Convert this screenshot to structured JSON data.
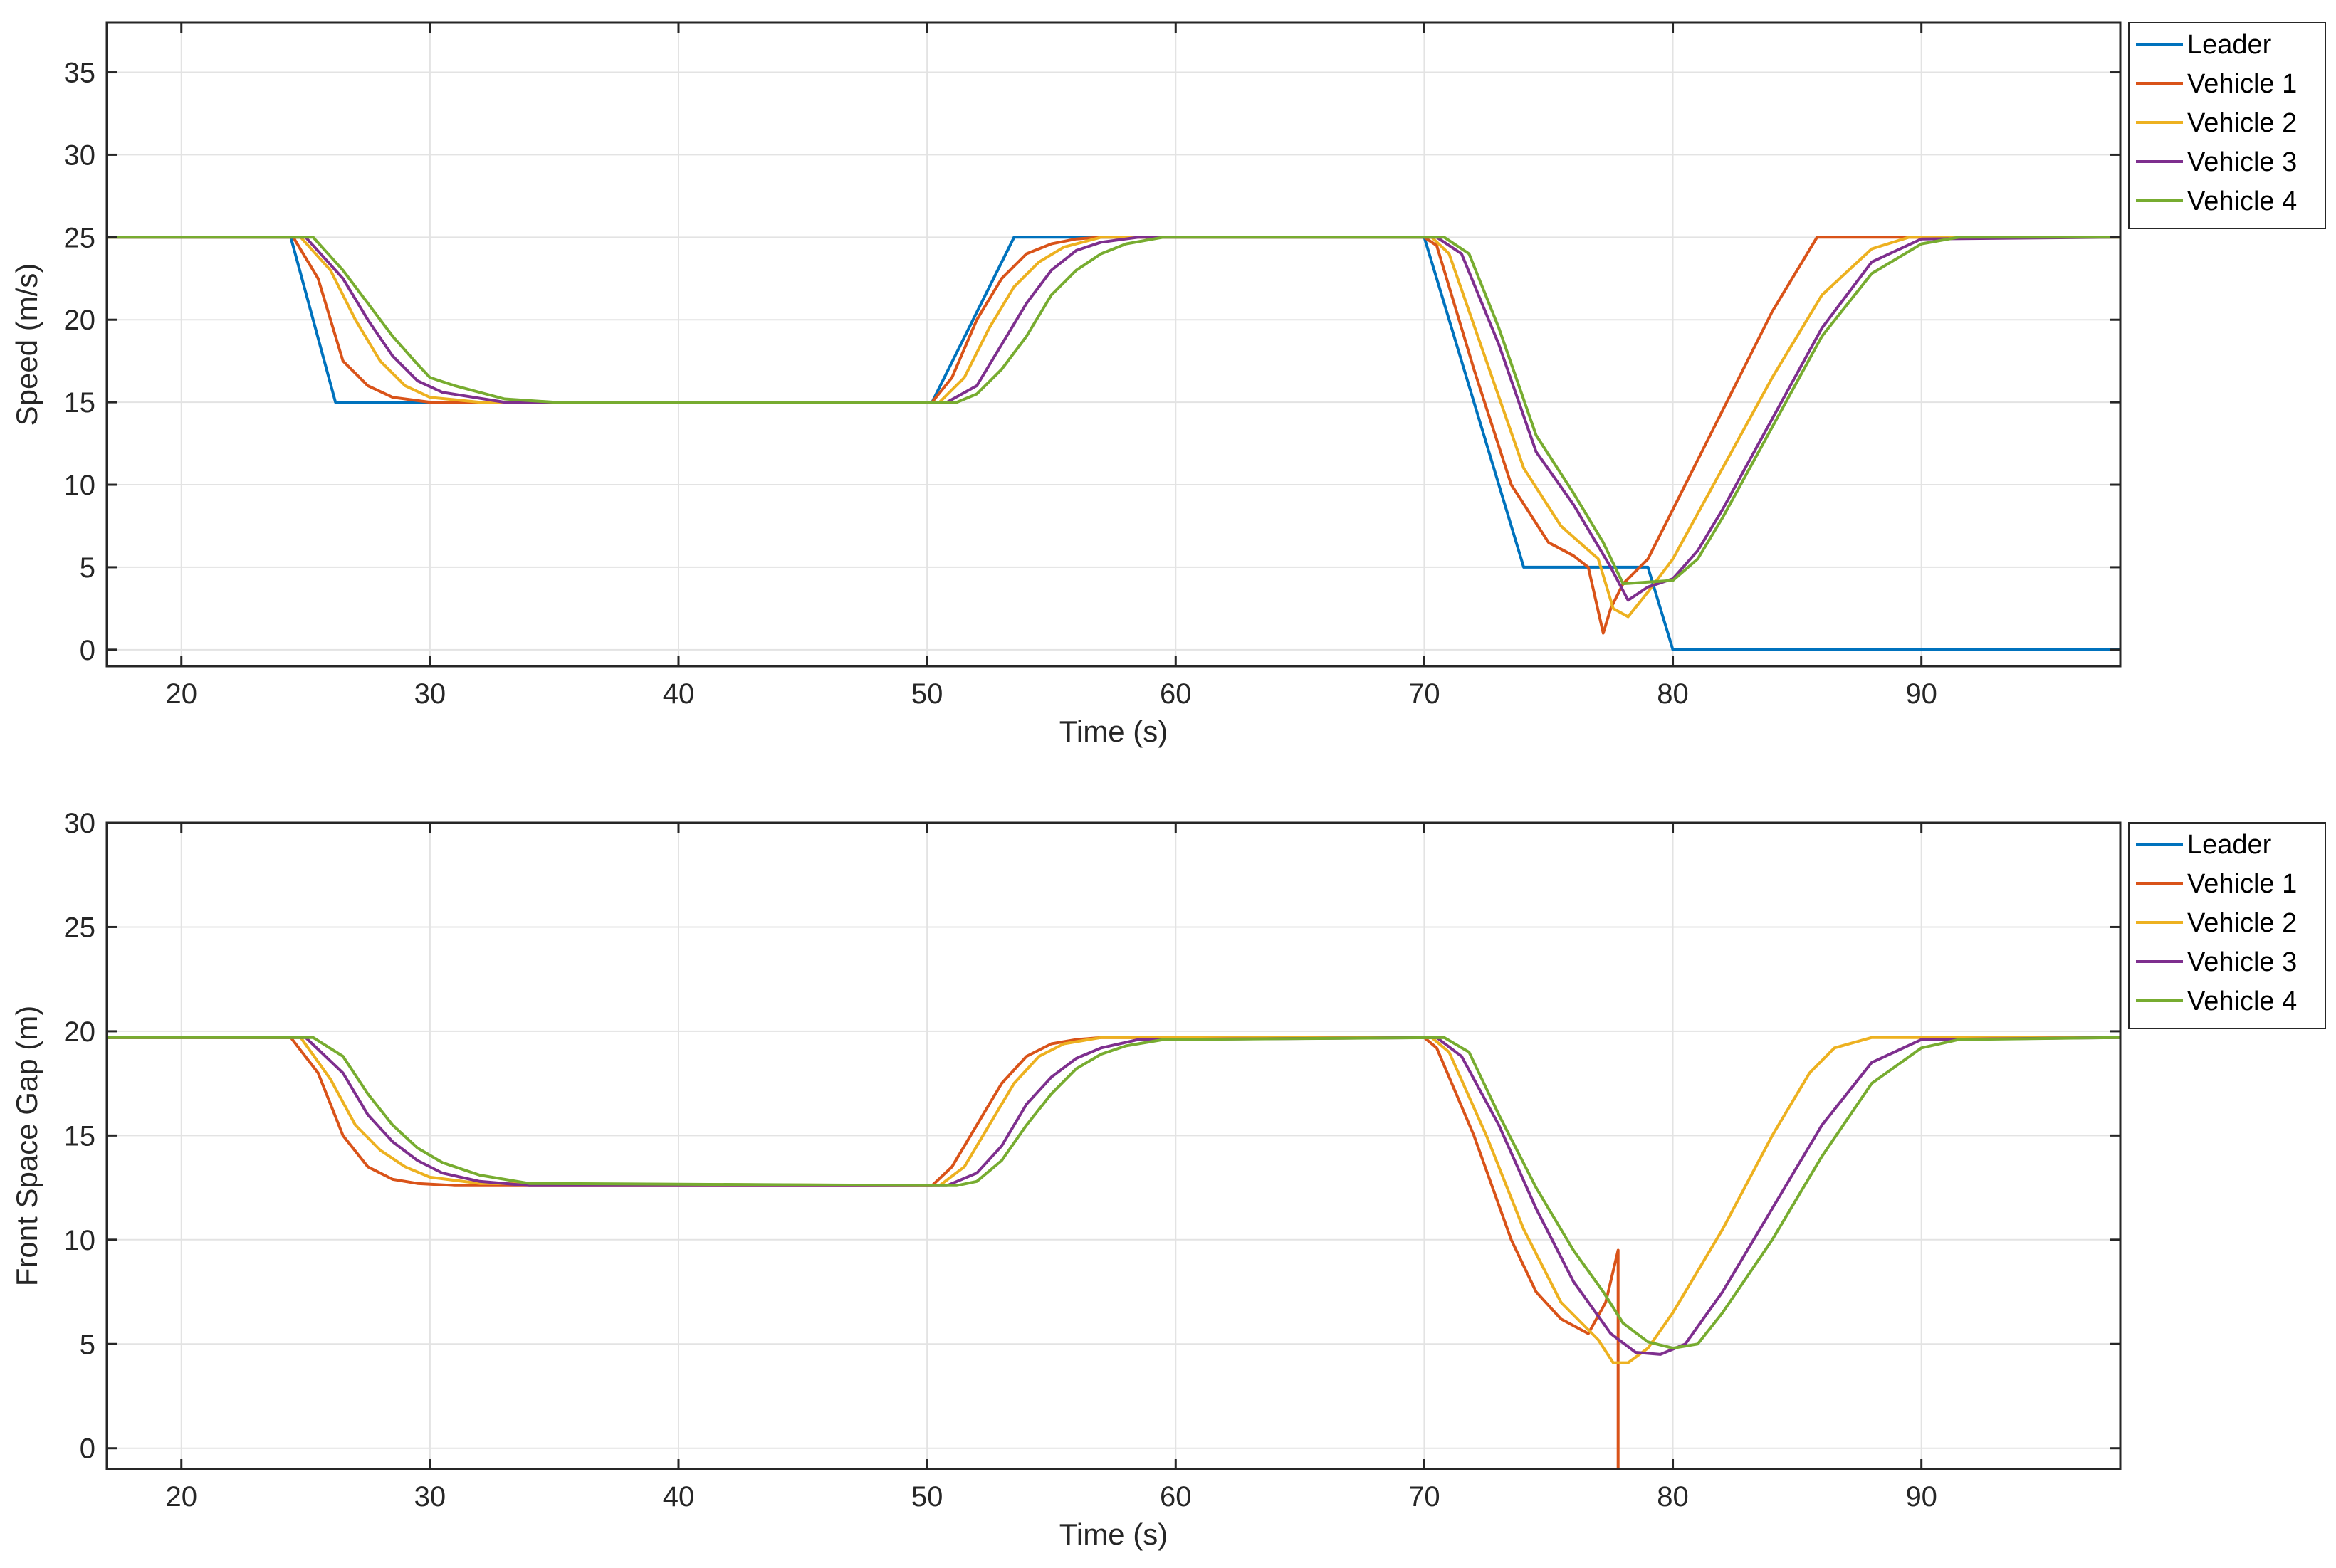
{
  "colors": {
    "Leader": "#0072BD",
    "Vehicle 1": "#D95319",
    "Vehicle 2": "#EDB120",
    "Vehicle 3": "#7E2F8E",
    "Vehicle 4": "#77AC30"
  },
  "chart_data": [
    {
      "type": "line",
      "xlabel": "Time (s)",
      "ylabel": "Speed (m/s)",
      "xlim": [
        17,
        98
      ],
      "ylim": [
        -1,
        38
      ],
      "xticks": [
        20,
        30,
        40,
        50,
        60,
        70,
        80,
        90
      ],
      "yticks": [
        0,
        5,
        10,
        15,
        20,
        25,
        30,
        35
      ],
      "grid": true,
      "legend": {
        "position": "outside-right-top",
        "entries": [
          "Leader",
          "Vehicle 1",
          "Vehicle 2",
          "Vehicle 3",
          "Vehicle 4"
        ]
      },
      "series": [
        {
          "name": "Leader",
          "x": [
            17,
            24.4,
            26.2,
            50.2,
            53.5,
            70,
            74,
            79,
            80,
            98
          ],
          "y": [
            25,
            25,
            15,
            15,
            25,
            25,
            5,
            5,
            0,
            0
          ]
        },
        {
          "name": "Vehicle 1",
          "x": [
            17,
            24.5,
            25.5,
            26.5,
            27.5,
            28.5,
            30,
            32,
            50.2,
            51,
            52,
            53,
            54,
            55,
            56,
            57,
            70,
            70.5,
            72,
            73.5,
            75,
            76,
            76.6,
            77.2,
            77.5,
            78,
            79,
            80,
            82,
            84,
            85.8,
            98
          ],
          "y": [
            25,
            25,
            22.5,
            17.5,
            16,
            15.3,
            15,
            15,
            15,
            16.5,
            20,
            22.5,
            24,
            24.6,
            24.9,
            25,
            25,
            24.5,
            17,
            10,
            6.5,
            5.7,
            5,
            1,
            2.5,
            4,
            5.5,
            8.5,
            14.5,
            20.5,
            25,
            25
          ]
        },
        {
          "name": "Vehicle 2",
          "x": [
            17,
            24.8,
            26,
            27,
            28,
            29,
            30,
            32,
            50.5,
            51.5,
            52.5,
            53.5,
            54.5,
            55.5,
            57,
            70.3,
            71,
            72.5,
            74,
            75.5,
            77,
            77.6,
            78.2,
            79,
            80,
            82,
            84,
            86,
            88,
            89.5,
            98
          ],
          "y": [
            25,
            25,
            23,
            20,
            17.5,
            16,
            15.3,
            15,
            15,
            16.5,
            19.5,
            22,
            23.5,
            24.4,
            25,
            25,
            24,
            17.5,
            11,
            7.5,
            5.5,
            2.5,
            2,
            3.5,
            5.5,
            11,
            16.5,
            21.5,
            24.3,
            25,
            25
          ]
        },
        {
          "name": "Vehicle 3",
          "x": [
            17,
            25,
            26.5,
            27.5,
            28.5,
            29.5,
            30.5,
            33,
            35,
            50.8,
            52,
            53,
            54,
            55,
            56,
            57,
            58.5,
            70.5,
            71.5,
            73,
            74.5,
            76,
            77.5,
            78.2,
            79,
            80,
            81,
            82,
            84,
            86,
            88,
            90,
            98
          ],
          "y": [
            25,
            25,
            22.5,
            20,
            17.8,
            16.3,
            15.6,
            15,
            15,
            15,
            16,
            18.5,
            21,
            23,
            24.2,
            24.7,
            25,
            25,
            24,
            18.5,
            12,
            8.8,
            5,
            3,
            3.8,
            4.3,
            6,
            8.5,
            14,
            19.5,
            23.5,
            24.9,
            25
          ]
        },
        {
          "name": "Vehicle 4",
          "x": [
            17,
            25.3,
            26.5,
            27.5,
            28.5,
            29.5,
            30,
            31,
            33,
            35,
            51.2,
            52,
            53,
            54,
            55,
            56,
            57,
            58,
            59.5,
            70.8,
            71.8,
            73,
            74.5,
            76,
            77.2,
            78,
            79,
            80,
            81,
            82,
            84,
            86,
            88,
            90,
            91.5,
            98
          ],
          "y": [
            25,
            25,
            23,
            21,
            19,
            17.3,
            16.5,
            16,
            15.2,
            15,
            15,
            15.5,
            17,
            19,
            21.5,
            23,
            24,
            24.6,
            25,
            25,
            24,
            19.5,
            13,
            9.5,
            6.5,
            4,
            4.1,
            4.2,
            5.5,
            8,
            13.5,
            19,
            22.8,
            24.6,
            25,
            25
          ]
        }
      ]
    },
    {
      "type": "line",
      "xlabel": "Time (s)",
      "ylabel": "Front Space Gap (m)",
      "xlim": [
        17,
        98
      ],
      "ylim": [
        -1,
        30
      ],
      "xticks": [
        20,
        30,
        40,
        50,
        60,
        70,
        80,
        90
      ],
      "yticks": [
        0,
        5,
        10,
        15,
        20,
        25,
        30
      ],
      "grid": true,
      "legend": {
        "position": "outside-right-top",
        "entries": [
          "Leader",
          "Vehicle 1",
          "Vehicle 2",
          "Vehicle 3",
          "Vehicle 4"
        ]
      },
      "series": [
        {
          "name": "Leader",
          "x": [
            17,
            98
          ],
          "y": [
            -1,
            -1
          ]
        },
        {
          "name": "Vehicle 1",
          "x": [
            17,
            24.4,
            25.5,
            26.5,
            27.5,
            28.5,
            29.5,
            31,
            50.2,
            51,
            52,
            53,
            54,
            55,
            56,
            57,
            70,
            70.5,
            72,
            73.5,
            74.5,
            75.5,
            76.6,
            77.3,
            77.8,
            77.8,
            98
          ],
          "y": [
            19.7,
            19.7,
            18,
            15,
            13.5,
            12.9,
            12.7,
            12.6,
            12.6,
            13.5,
            15.5,
            17.5,
            18.8,
            19.4,
            19.6,
            19.7,
            19.7,
            19.2,
            15,
            10,
            7.5,
            6.2,
            5.5,
            7,
            9.5,
            -1,
            -1
          ]
        },
        {
          "name": "Vehicle 2",
          "x": [
            17,
            24.8,
            26,
            27,
            28,
            29,
            30,
            32,
            50.5,
            51.5,
            52.5,
            53.5,
            54.5,
            55.5,
            57,
            70.3,
            71,
            72.5,
            74,
            75.5,
            77,
            77.6,
            78.2,
            79,
            80,
            82,
            84,
            85.5,
            86.5,
            88,
            98
          ],
          "y": [
            19.7,
            19.7,
            17.7,
            15.5,
            14.3,
            13.5,
            13,
            12.7,
            12.6,
            13.5,
            15.5,
            17.5,
            18.8,
            19.4,
            19.7,
            19.7,
            19,
            15,
            10.5,
            7,
            5.2,
            4.1,
            4.1,
            4.8,
            6.5,
            10.5,
            15,
            18,
            19.2,
            19.7,
            19.7
          ]
        },
        {
          "name": "Vehicle 3",
          "x": [
            17,
            25,
            26.5,
            27.5,
            28.5,
            29.5,
            30.5,
            32,
            34,
            50.8,
            52,
            53,
            54,
            55,
            56,
            57,
            58.5,
            70.5,
            71.5,
            73,
            74.5,
            76,
            77.5,
            78.5,
            79.5,
            80.5,
            82,
            84,
            86,
            88,
            90,
            98
          ],
          "y": [
            19.7,
            19.7,
            18,
            16,
            14.7,
            13.8,
            13.2,
            12.8,
            12.6,
            12.6,
            13.2,
            14.5,
            16.5,
            17.8,
            18.7,
            19.2,
            19.6,
            19.7,
            18.8,
            15.5,
            11.5,
            8,
            5.5,
            4.6,
            4.5,
            5,
            7.5,
            11.5,
            15.5,
            18.5,
            19.6,
            19.7
          ]
        },
        {
          "name": "Vehicle 4",
          "x": [
            17,
            25.3,
            26.5,
            27.5,
            28.5,
            29.5,
            30.5,
            32,
            34,
            51.2,
            52,
            53,
            54,
            55,
            56,
            57,
            58,
            59.5,
            70.8,
            71.8,
            73,
            74.5,
            76,
            77.2,
            78,
            79,
            80,
            81,
            82,
            84,
            86,
            88,
            90,
            91.5,
            98
          ],
          "y": [
            19.7,
            19.7,
            18.8,
            17,
            15.5,
            14.4,
            13.7,
            13.1,
            12.7,
            12.6,
            12.8,
            13.8,
            15.5,
            17,
            18.2,
            18.9,
            19.3,
            19.6,
            19.7,
            19,
            16,
            12.5,
            9.5,
            7.5,
            6,
            5.1,
            4.8,
            5,
            6.5,
            10,
            14,
            17.5,
            19.2,
            19.6,
            19.7
          ]
        }
      ]
    }
  ]
}
